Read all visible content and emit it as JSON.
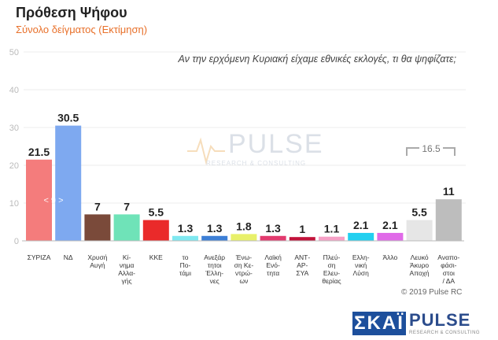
{
  "header": {
    "title": "Πρόθεση Ψήφου",
    "subtitle": "Σύνολο δείγματος   (Εκτίμηση)",
    "question": "Αν την ερχόμενη Κυριακή είχαμε εθνικές εκλογές, τι θα ψηφίζατε;"
  },
  "watermark": {
    "word": "PULSE",
    "tagline": "RESEARCH & CONSULTING"
  },
  "annotations": {
    "diff_label": "< 9 >",
    "bracket_label": "16.5"
  },
  "footer": {
    "copyright": "© 2019 Pulse RC"
  },
  "logos": {
    "skai": "ΣΚΑΪ",
    "pulse": "PULSE",
    "pulse_tag": "RESEARCH & CONSULTING"
  },
  "chart_data": {
    "type": "bar",
    "ylim": [
      0,
      50
    ],
    "yticks": [
      0,
      10,
      20,
      30,
      40,
      50
    ],
    "grid": true,
    "categories": [
      [
        "ΣΥΡΙΖΑ"
      ],
      [
        "ΝΔ"
      ],
      [
        "Χρυσή",
        "Αυγή"
      ],
      [
        "Κί-",
        "νημα",
        "Αλλα-",
        "γής"
      ],
      [
        "ΚΚΕ"
      ],
      [
        "το",
        "Πο-",
        "τάμι"
      ],
      [
        "Ανεξάρ",
        "τητοι",
        "Έλλη-",
        "νες"
      ],
      [
        "Ένω-",
        "ση Κε-",
        "ντρώ-",
        "ων"
      ],
      [
        "Λαϊκή",
        "Ενό-",
        "τητα"
      ],
      [
        "ΑΝΤ-",
        "ΑΡ-",
        "ΣΥΑ"
      ],
      [
        "Πλεύ-",
        "ση",
        "Ελευ-",
        "θερίας"
      ],
      [
        "Ελλη-",
        "νική",
        "Λύση"
      ],
      [
        "Άλλο"
      ],
      [
        "Λευκό",
        "Άκυρο",
        "Αποχή"
      ],
      [
        "Αναπο-",
        "φάσι-",
        "στοι",
        "/ ΔΑ"
      ]
    ],
    "values": [
      21.5,
      30.5,
      7,
      7,
      5.5,
      1.3,
      1.3,
      1.8,
      1.3,
      1,
      1.1,
      2.1,
      2.1,
      5.5,
      11
    ],
    "value_labels": [
      "21.5",
      "30.5",
      "7",
      "7",
      "5.5",
      "1.3",
      "1.3",
      "1.8",
      "1.3",
      "1",
      "1.1",
      "2.1",
      "2.1",
      "5.5",
      "11"
    ],
    "colors": [
      "#f47c7c",
      "#7ea9f0",
      "#7a4a3a",
      "#6fe3b8",
      "#ea2a2a",
      "#7fe8f0",
      "#3d7fd6",
      "#e8f06a",
      "#e23a6e",
      "#c2123a",
      "#f6a0c6",
      "#22d0f0",
      "#e06ae8",
      "#e6e6e6",
      "#bdbdbd"
    ]
  }
}
